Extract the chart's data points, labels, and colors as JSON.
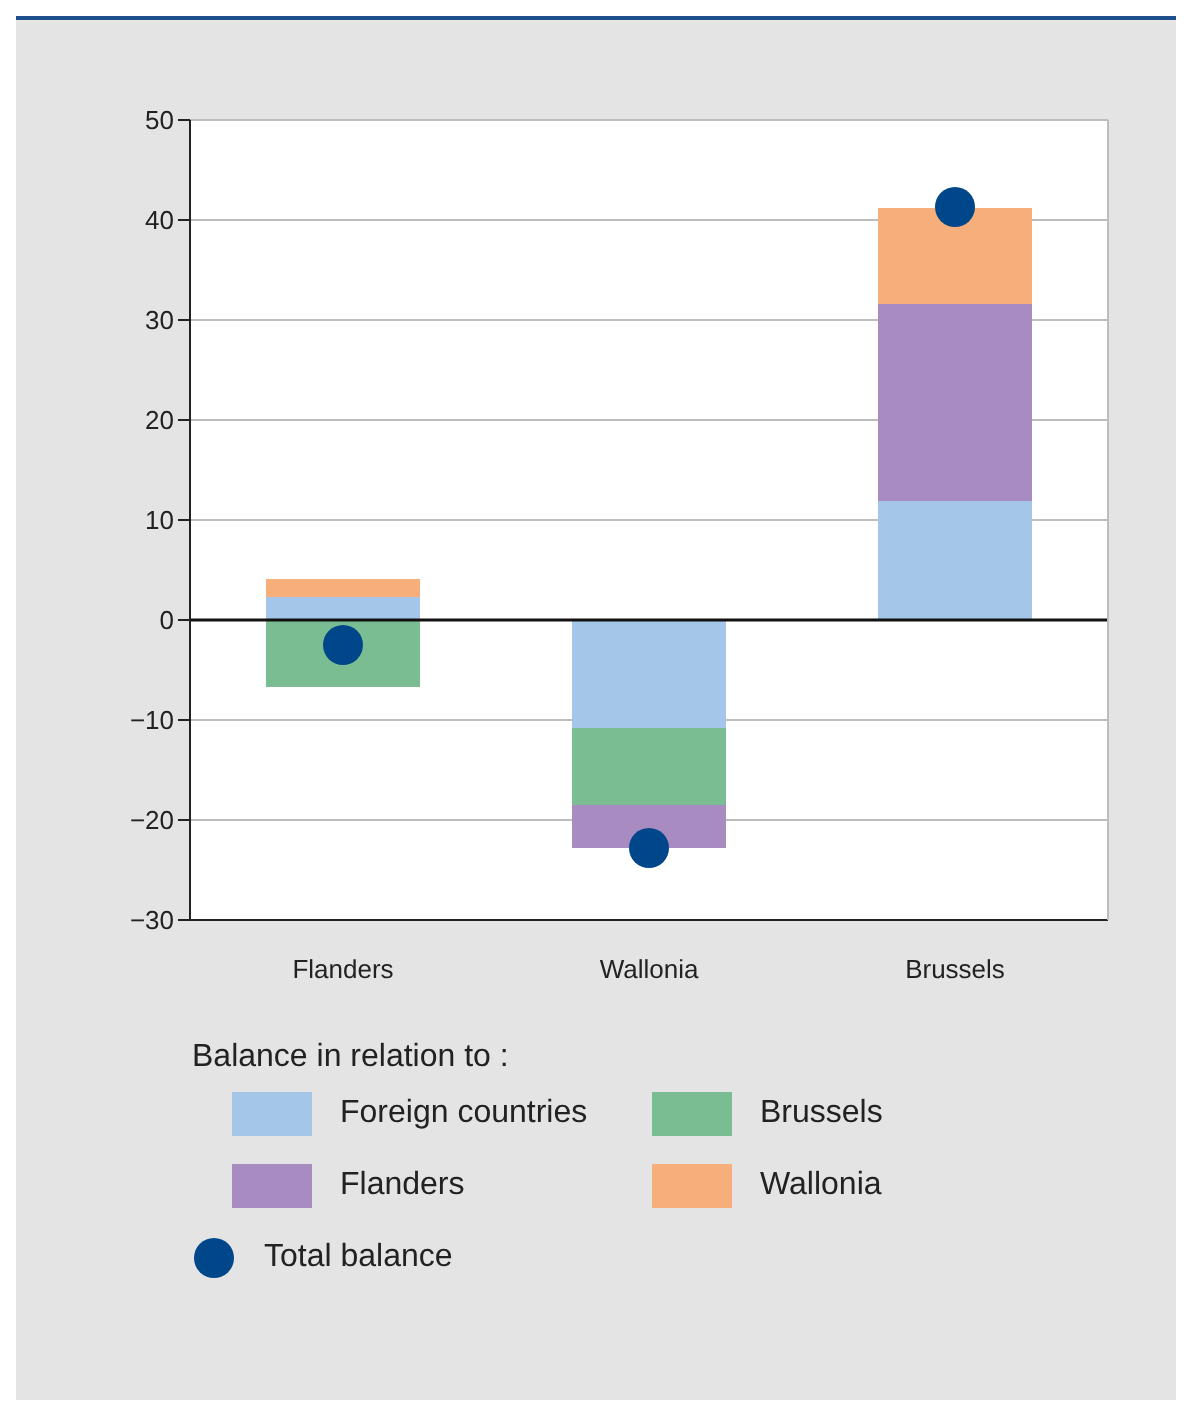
{
  "chart_data": {
    "type": "bar",
    "stacked": true,
    "categories": [
      "Flanders",
      "Wallonia",
      "Brussels"
    ],
    "series": [
      {
        "name": "Foreign countries",
        "color": "#a4c6e9",
        "values": [
          2.3,
          -10.8,
          11.9
        ]
      },
      {
        "name": "Brussels",
        "color": "#7bbd93",
        "values": [
          -6.7,
          -7.7,
          null
        ]
      },
      {
        "name": "Flanders",
        "color": "#a88bc1",
        "values": [
          null,
          -4.3,
          19.7
        ]
      },
      {
        "name": "Wallonia",
        "color": "#f6ae7b",
        "values": [
          1.8,
          null,
          9.6
        ]
      },
      {
        "name": "Total balance",
        "type": "scatter",
        "color": "#00468b",
        "values": [
          -2.5,
          -22.8,
          41.3
        ]
      }
    ],
    "ylim": [
      -30,
      50
    ],
    "yticks": [
      {
        "value": -30,
        "label": "−30"
      },
      {
        "value": -20,
        "label": "−20"
      },
      {
        "value": -10,
        "label": "−10"
      },
      0,
      10,
      20,
      30,
      40,
      50
    ],
    "grid": "y",
    "legend": "bottom",
    "legend_title": "Balance in relation to :",
    "marker": "circle"
  }
}
